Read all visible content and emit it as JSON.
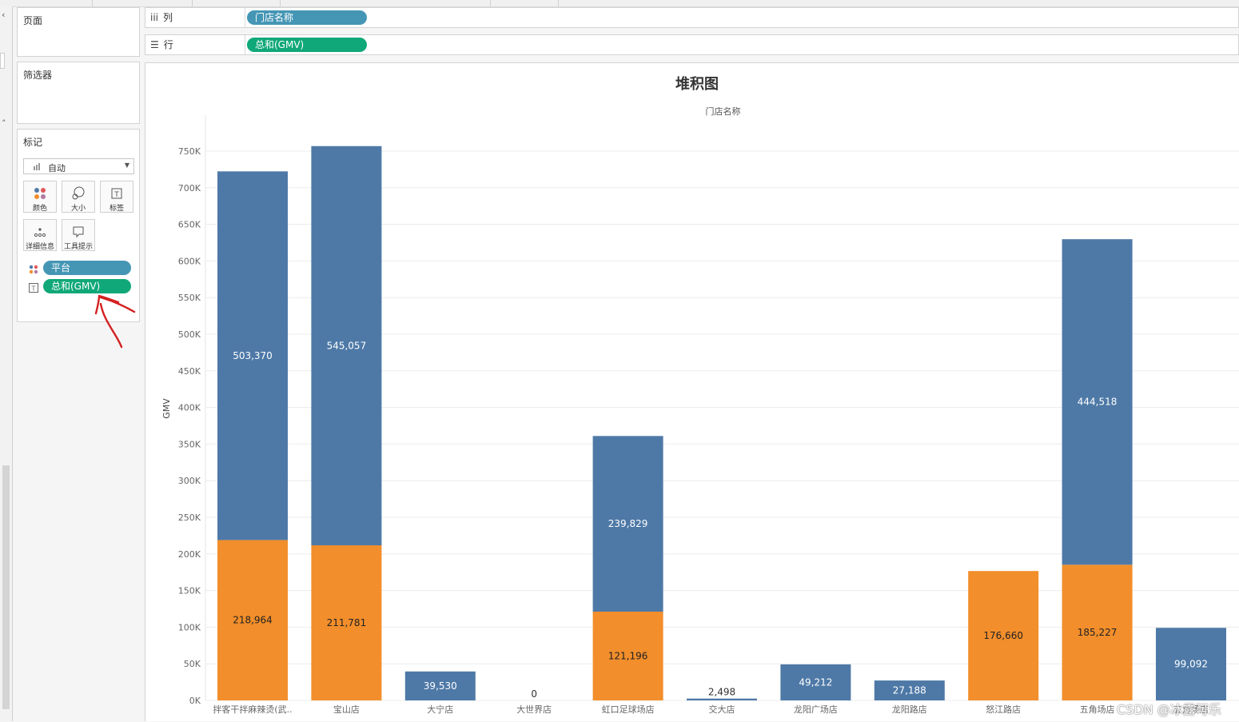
{
  "left_panel": {
    "pages_title": "页面",
    "filters_title": "筛选器",
    "marks_title": "标记",
    "mark_type": "自动",
    "mark_buttons": [
      {
        "label": "颜色",
        "icon": "color-icon"
      },
      {
        "label": "大小",
        "icon": "size-icon"
      },
      {
        "label": "标签",
        "icon": "label-icon"
      },
      {
        "label": "详细信息",
        "icon": "detail-icon"
      },
      {
        "label": "工具提示",
        "icon": "tooltip-icon"
      }
    ],
    "mark_pills": [
      {
        "label": "平台",
        "icon": "color-dots-icon",
        "color": "#4596b5"
      },
      {
        "label": "总和(GMV)",
        "icon": "text-label-icon",
        "color": "#10a878"
      }
    ]
  },
  "shelves": {
    "columns": {
      "label": "列",
      "pill": "门店名称",
      "pill_color": "#4596b5"
    },
    "rows": {
      "label": "行",
      "pill": "总和(GMV)",
      "pill_color": "#10a878"
    }
  },
  "chart_data": {
    "type": "bar",
    "stacked": true,
    "title": "堆积图",
    "column_header": "门店名称",
    "ylabel": "GMV",
    "ylim": [
      0,
      750000
    ],
    "yticks": [
      "0K",
      "50K",
      "100K",
      "150K",
      "200K",
      "250K",
      "300K",
      "350K",
      "400K",
      "450K",
      "500K",
      "550K",
      "600K",
      "650K",
      "700K",
      "750K"
    ],
    "categories": [
      "拌客干拌麻辣烫(武..",
      "宝山店",
      "大宁店",
      "大世界店",
      "虹口足球场店",
      "交大店",
      "龙阳广场店",
      "龙阳路店",
      "怒江路店",
      "五角场店",
      "五角场店"
    ],
    "series": [
      {
        "color": "#f28e2b",
        "values": [
          218964,
          211781,
          null,
          0,
          121196,
          null,
          null,
          null,
          176660,
          185227,
          null
        ]
      },
      {
        "color": "#4e79a7",
        "values": [
          503370,
          545057,
          39530,
          null,
          239829,
          2498,
          49212,
          27188,
          null,
          444518,
          99092
        ]
      }
    ],
    "grid": true,
    "legend": "none"
  },
  "watermark": "CSDN @冰露可乐"
}
